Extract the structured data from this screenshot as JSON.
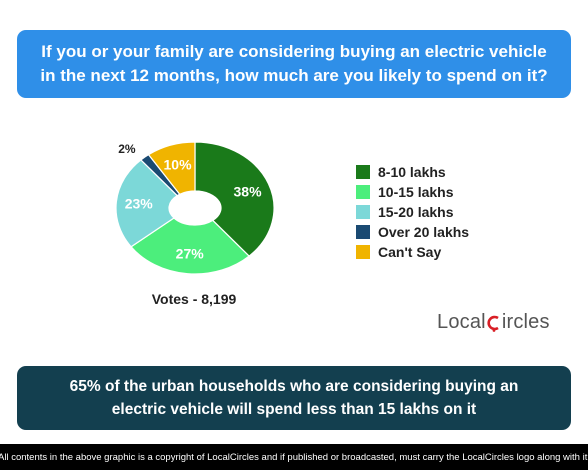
{
  "question": "If you or your family are considering buying an electric vehicle in the next 12 months, how much are you likely to spend on it?",
  "chart_data": {
    "type": "pie",
    "variant": "donut",
    "categories": [
      "8-10 lakhs",
      "10-15 lakhs",
      "15-20 lakhs",
      "Over 20 lakhs",
      "Can't Say"
    ],
    "values": [
      38,
      27,
      23,
      2,
      10
    ],
    "value_labels": [
      "38%",
      "27%",
      "23%",
      "2%",
      "10%"
    ],
    "colors": [
      "#1a7a1a",
      "#4cee7c",
      "#7cd8d8",
      "#1a4a72",
      "#f0b400"
    ],
    "legend_position": "right"
  },
  "votes": "Votes - 8,199",
  "brand": {
    "part1": "Local",
    "part2": "ircles"
  },
  "finding": "65% of the urban households who are considering buying an electric vehicle will spend less than 15 lakhs on it",
  "footer": "All contents in the above graphic is a copyright of LocalCircles and if published or broadcasted, must carry the LocalCircles logo along with it."
}
